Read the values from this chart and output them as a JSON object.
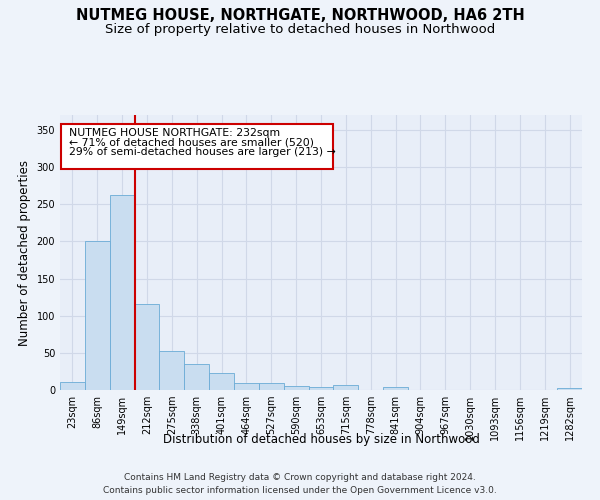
{
  "title": "NUTMEG HOUSE, NORTHGATE, NORTHWOOD, HA6 2TH",
  "subtitle": "Size of property relative to detached houses in Northwood",
  "xlabel": "Distribution of detached houses by size in Northwood",
  "ylabel": "Number of detached properties",
  "categories": [
    "23sqm",
    "86sqm",
    "149sqm",
    "212sqm",
    "275sqm",
    "338sqm",
    "401sqm",
    "464sqm",
    "527sqm",
    "590sqm",
    "653sqm",
    "715sqm",
    "778sqm",
    "841sqm",
    "904sqm",
    "967sqm",
    "1030sqm",
    "1093sqm",
    "1156sqm",
    "1219sqm",
    "1282sqm"
  ],
  "values": [
    11,
    200,
    262,
    116,
    53,
    35,
    23,
    9,
    9,
    6,
    4,
    7,
    0,
    4,
    0,
    0,
    0,
    0,
    0,
    0,
    3
  ],
  "bar_color": "#c9ddf0",
  "bar_edge_color": "#6aabd6",
  "vline_color": "#cc0000",
  "vline_after_index": 2,
  "annotation_line1": "NUTMEG HOUSE NORTHGATE: 232sqm",
  "annotation_line2": "← 71% of detached houses are smaller (520)",
  "annotation_line3": "29% of semi-detached houses are larger (213) →",
  "annotation_box_color": "#ffffff",
  "annotation_box_edge": "#cc0000",
  "ylim": [
    0,
    370
  ],
  "yticks": [
    0,
    50,
    100,
    150,
    200,
    250,
    300,
    350
  ],
  "footer": "Contains HM Land Registry data © Crown copyright and database right 2024.\nContains public sector information licensed under the Open Government Licence v3.0.",
  "bg_color": "#eef3fa",
  "plot_bg_color": "#e8eef8",
  "grid_color": "#d0d8e8",
  "title_fontsize": 10.5,
  "subtitle_fontsize": 9.5,
  "axis_label_fontsize": 8.5,
  "tick_fontsize": 7,
  "footer_fontsize": 6.5,
  "annotation_fontsize": 7.8
}
